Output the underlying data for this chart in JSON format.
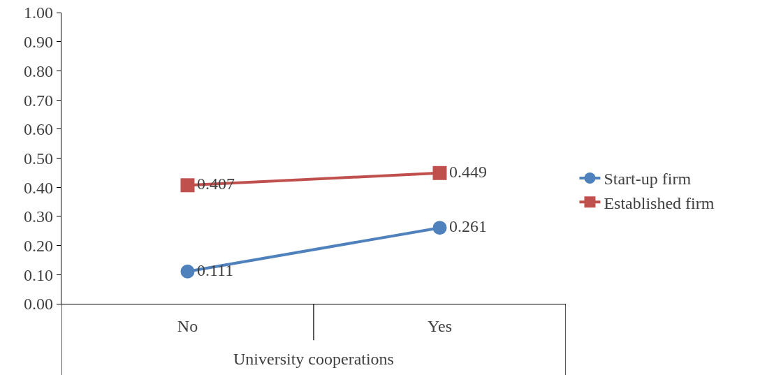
{
  "chart_data": {
    "type": "line",
    "xlabel": "University cooperations",
    "categories": [
      "No",
      "Yes"
    ],
    "series": [
      {
        "name": "Start-up firm",
        "color": "#4f81bd",
        "values": [
          0.111,
          0.261
        ],
        "marker": "circle"
      },
      {
        "name": "Established firm",
        "color": "#c0504d",
        "values": [
          0.407,
          0.449
        ],
        "marker": "square"
      }
    ],
    "ylim": [
      0,
      1
    ],
    "yticks": [
      "0.00",
      "0.10",
      "0.20",
      "0.30",
      "0.40",
      "0.50",
      "0.60",
      "0.70",
      "0.80",
      "0.90",
      "1.00"
    ],
    "grid": false,
    "legend": "right",
    "data_labels": true
  }
}
